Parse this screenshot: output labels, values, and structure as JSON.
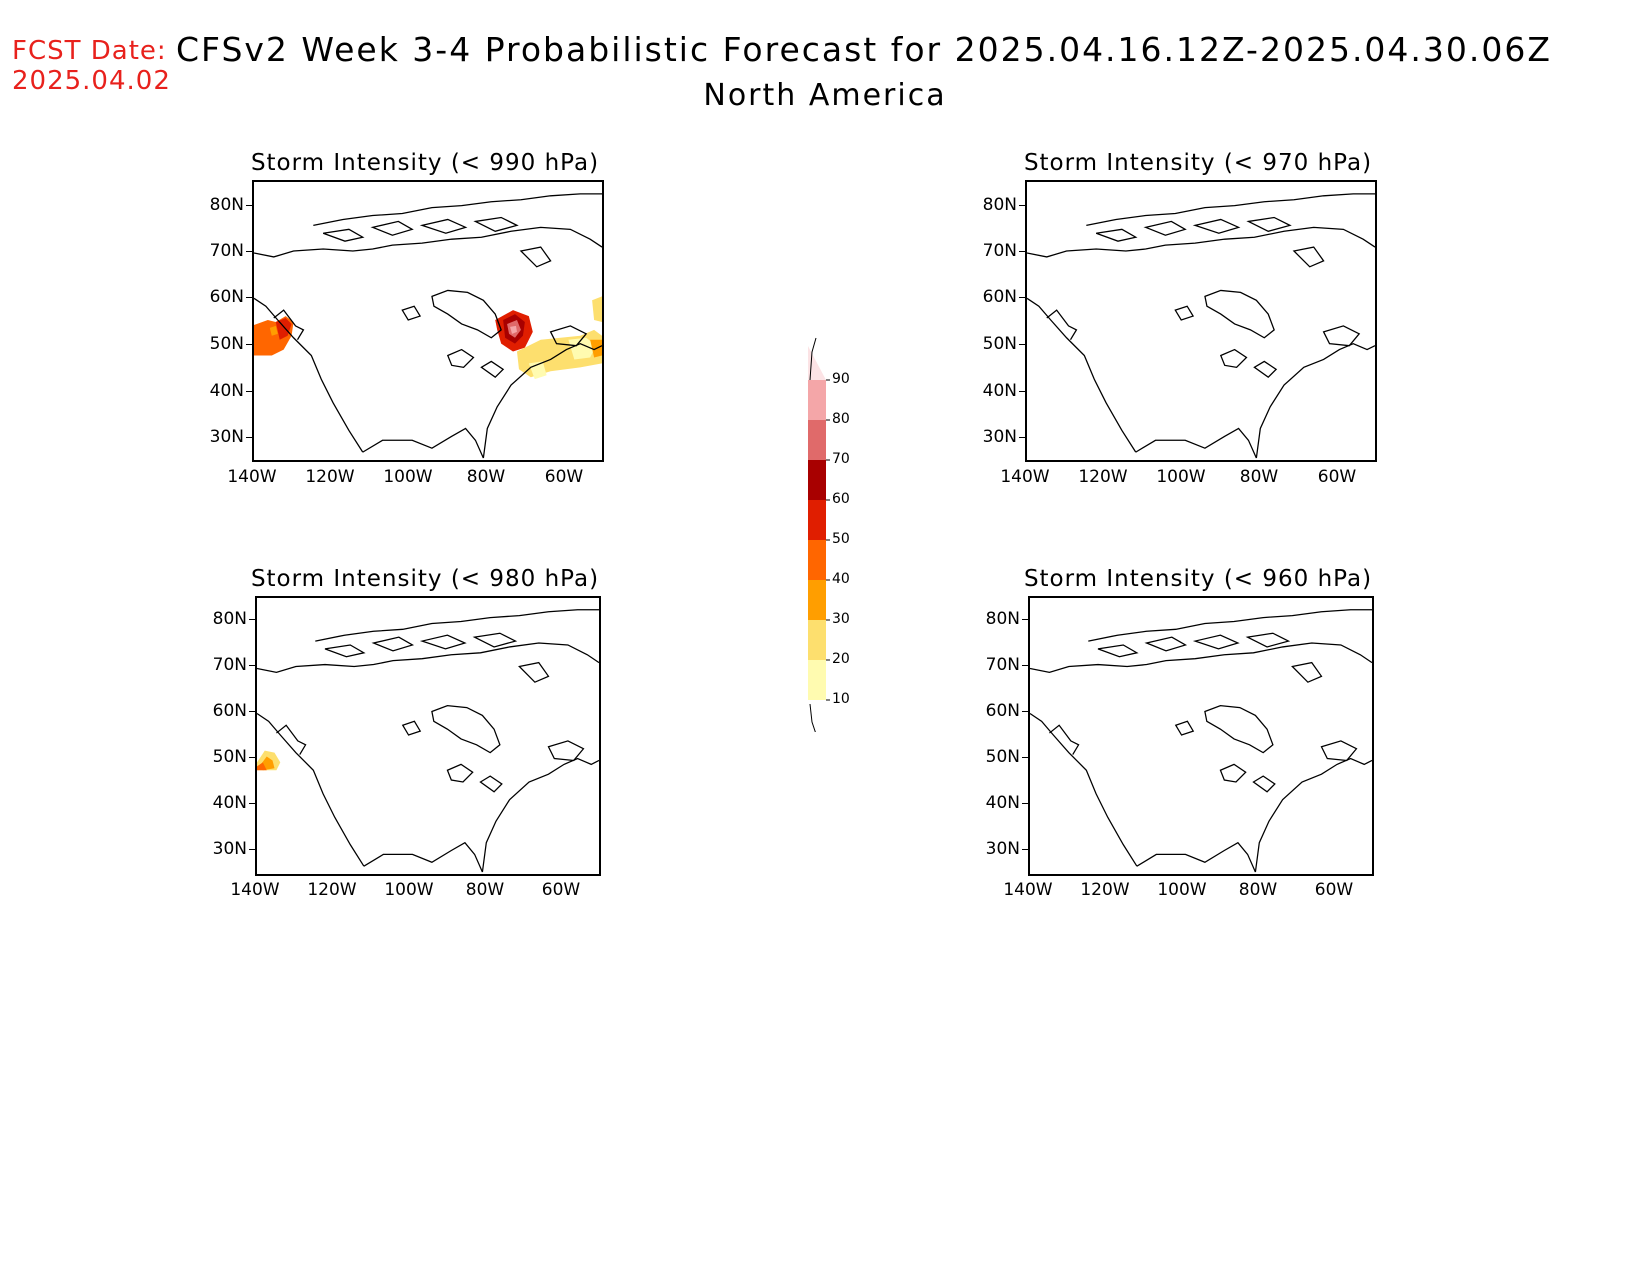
{
  "header": {
    "fcst_label": "FCST Date:",
    "fcst_date": "2025.04.02",
    "title": "CFSv2 Week 3-4 Probabilistic Forecast for 2025.04.16.12Z-2025.04.30.06Z",
    "subtitle": "North America"
  },
  "panels": [
    {
      "title": "Storm Intensity (< 990 hPa)",
      "threshold_hpa": 990
    },
    {
      "title": "Storm Intensity (< 970 hPa)",
      "threshold_hpa": 970
    },
    {
      "title": "Storm Intensity (< 980 hPa)",
      "threshold_hpa": 980
    },
    {
      "title": "Storm Intensity (< 960 hPa)",
      "threshold_hpa": 960
    }
  ],
  "axes": {
    "lat_labels": [
      "80N",
      "70N",
      "60N",
      "50N",
      "40N",
      "30N"
    ],
    "lon_labels": [
      "140W",
      "120W",
      "100W",
      "80W",
      "60W"
    ]
  },
  "colorbar": {
    "labels": [
      "90",
      "80",
      "70",
      "60",
      "50",
      "40",
      "30",
      "20",
      "10"
    ],
    "colors": [
      "#fce3e5",
      "#f4a6a8",
      "#e06a6a",
      "#a80000",
      "#e01e00",
      "#ff6600",
      "#ff9e00",
      "#fddf6e",
      "#fffbb0"
    ]
  },
  "colors": {
    "fcst_text": "#e8211c",
    "coastline": "#000000"
  }
}
